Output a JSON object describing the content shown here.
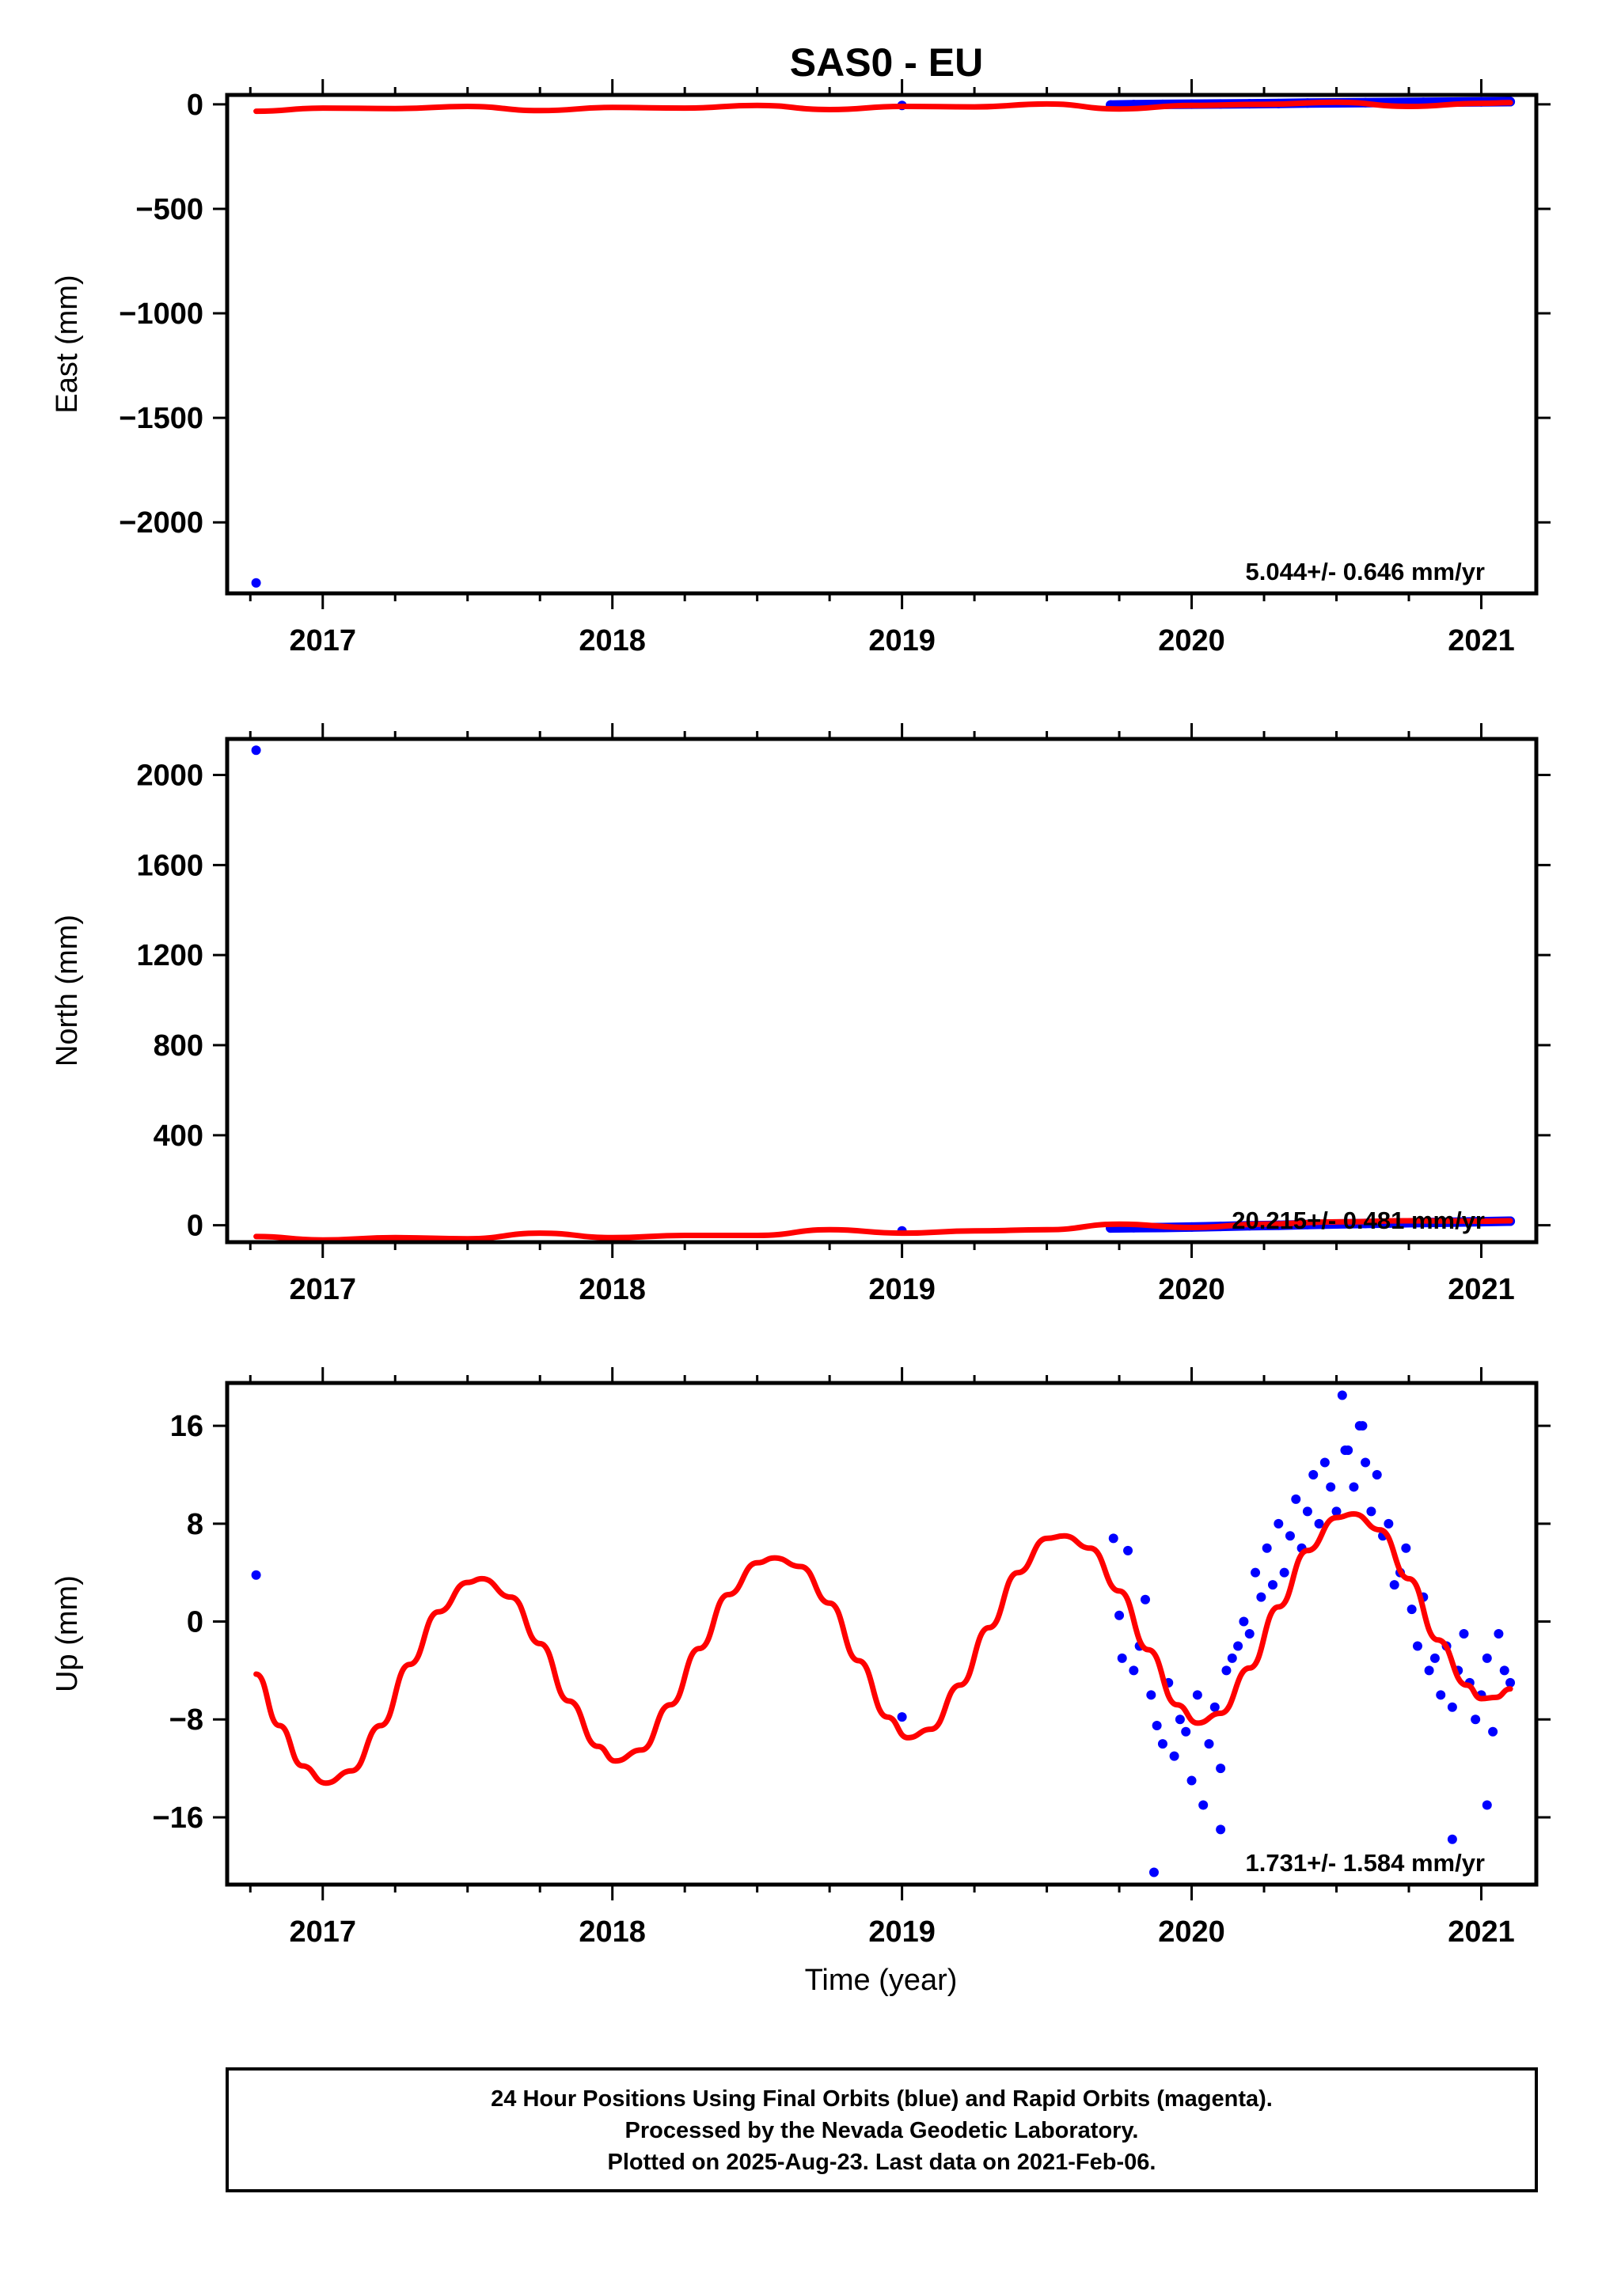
{
  "title": "SAS0 - EU",
  "colors": {
    "final_orbits": "#0000ff",
    "rapid_orbits": "#ff00ff",
    "model": "#ff0000",
    "frame": "#000000",
    "background": "#ffffff"
  },
  "footer": {
    "line1": "24 Hour Positions Using Final Orbits (blue) and Rapid Orbits (magenta).",
    "line2": "Processed by the Nevada Geodetic Laboratory.",
    "line3": "Plotted on 2025-Aug-23. Last data on 2021-Feb-06."
  },
  "chart_data": [
    {
      "type": "scatter",
      "ylabel": "East (mm)",
      "xlabel": "",
      "xlim": [
        2016.67,
        2021.19
      ],
      "ylim": [
        -2340,
        45
      ],
      "x_ticks": [
        2017,
        2018,
        2019,
        2020,
        2021
      ],
      "y_ticks": [
        0,
        -500,
        -1000,
        -1500,
        -2000
      ],
      "rate_label": "5.044+/- 0.646 mm/yr",
      "series": [
        {
          "role": "observations",
          "x": [
            2016.77,
            2019.0,
            2019.72,
            2019.8,
            2019.9,
            2020.0,
            2020.1,
            2020.2,
            2020.3,
            2020.4,
            2020.5,
            2020.6,
            2020.7,
            2020.8,
            2020.9,
            2021.0,
            2021.1
          ],
          "y": [
            -2290,
            -5,
            -3,
            -1,
            0,
            1,
            2,
            3,
            4,
            6,
            7,
            8,
            9,
            10,
            11,
            12,
            13
          ]
        },
        {
          "role": "model",
          "x": [
            2016.77,
            2017.0,
            2017.25,
            2017.5,
            2017.75,
            2018.0,
            2018.25,
            2018.5,
            2018.75,
            2019.0,
            2019.25,
            2019.5,
            2019.75,
            2020.0,
            2020.25,
            2020.5,
            2020.75,
            2021.0,
            2021.1
          ],
          "y": [
            -33,
            -18,
            -20,
            -10,
            -30,
            -15,
            -18,
            -5,
            -25,
            -10,
            -12,
            2,
            -22,
            -5,
            0,
            10,
            -10,
            5,
            8
          ]
        }
      ]
    },
    {
      "type": "scatter",
      "ylabel": "North (mm)",
      "xlabel": "",
      "xlim": [
        2016.67,
        2021.19
      ],
      "ylim": [
        -75,
        2160
      ],
      "x_ticks": [
        2017,
        2018,
        2019,
        2020,
        2021
      ],
      "y_ticks": [
        0,
        400,
        800,
        1200,
        1600,
        2000
      ],
      "rate_label": "20.215+/- 0.481 mm/yr",
      "series": [
        {
          "role": "observations",
          "x": [
            2016.77,
            2019.0,
            2019.72,
            2019.8,
            2019.9,
            2020.0,
            2020.1,
            2020.2,
            2020.3,
            2020.4,
            2020.5,
            2020.6,
            2020.7,
            2020.8,
            2020.9,
            2021.0,
            2021.1
          ],
          "y": [
            2110,
            -25,
            -12,
            -11,
            -10,
            -8,
            -5,
            -2,
            0,
            3,
            6,
            8,
            10,
            12,
            14,
            16,
            18
          ]
        },
        {
          "role": "model",
          "x": [
            2016.77,
            2017.0,
            2017.25,
            2017.5,
            2017.75,
            2018.0,
            2018.25,
            2018.5,
            2018.75,
            2019.0,
            2019.25,
            2019.5,
            2019.75,
            2020.0,
            2020.25,
            2020.5,
            2020.75,
            2021.0,
            2021.1
          ],
          "y": [
            -50,
            -65,
            -55,
            -60,
            -35,
            -55,
            -45,
            -45,
            -20,
            -35,
            -25,
            -20,
            5,
            -10,
            5,
            15,
            20,
            18,
            20
          ]
        }
      ]
    },
    {
      "type": "scatter",
      "ylabel": "Up (mm)",
      "xlabel": "Time (year)",
      "xlim": [
        2016.67,
        2021.19
      ],
      "ylim": [
        -21.5,
        19.5
      ],
      "x_ticks": [
        2017,
        2018,
        2019,
        2020,
        2021
      ],
      "y_ticks": [
        16,
        8,
        0,
        -8,
        -16
      ],
      "rate_label": "1.731+/- 1.584 mm/yr",
      "series": [
        {
          "role": "observations",
          "x": [
            2016.77,
            2019.0,
            2019.73,
            2019.75,
            2019.76,
            2019.78,
            2019.8,
            2019.82,
            2019.84,
            2019.86,
            2019.88,
            2019.9,
            2019.92,
            2019.94,
            2019.96,
            2019.98,
            2020.0,
            2020.02,
            2020.04,
            2020.06,
            2020.08,
            2020.1,
            2020.12,
            2020.14,
            2020.16,
            2020.18,
            2020.2,
            2020.22,
            2020.24,
            2020.26,
            2020.28,
            2020.3,
            2020.32,
            2020.34,
            2020.36,
            2020.38,
            2020.4,
            2020.42,
            2020.44,
            2020.46,
            2020.48,
            2020.5,
            2020.52,
            2020.54,
            2020.56,
            2020.58,
            2020.6,
            2020.62,
            2020.64,
            2020.66,
            2020.68,
            2020.7,
            2020.72,
            2020.74,
            2020.76,
            2020.78,
            2020.8,
            2020.82,
            2020.84,
            2020.86,
            2020.88,
            2020.9,
            2020.92,
            2020.94,
            2020.96,
            2020.98,
            2021.0,
            2021.02,
            2021.04,
            2021.06,
            2021.08,
            2021.1,
            2019.87,
            2020.1,
            2020.53,
            2020.59,
            2020.9,
            2021.02
          ],
          "y": [
            3.8,
            -7.8,
            6.8,
            0.5,
            -3,
            5.8,
            -4,
            -2,
            1.8,
            -6,
            -8.5,
            -10,
            -5,
            -11,
            -8,
            -9,
            -13,
            -6,
            -15,
            -10,
            -7,
            -12,
            -4,
            -3,
            -2,
            0,
            -1,
            4,
            2,
            6,
            3,
            8,
            4,
            7,
            10,
            6,
            9,
            12,
            8,
            13,
            11,
            9,
            18.5,
            14,
            11,
            16,
            13,
            9,
            12,
            7,
            8,
            3,
            4,
            6,
            1,
            -2,
            2,
            -4,
            -3,
            -6,
            -2,
            -7,
            -4,
            -1,
            -5,
            -8,
            -6,
            -3,
            -9,
            -1,
            -4,
            -5,
            -20.5,
            -17,
            14,
            16,
            -17.8,
            -15
          ]
        },
        {
          "role": "model",
          "x": [
            2016.77,
            2016.85,
            2016.93,
            2017.01,
            2017.1,
            2017.2,
            2017.3,
            2017.4,
            2017.5,
            2017.55,
            2017.65,
            2017.75,
            2017.85,
            2017.95,
            2018.01,
            2018.1,
            2018.2,
            2018.3,
            2018.4,
            2018.5,
            2018.56,
            2018.65,
            2018.75,
            2018.85,
            2018.95,
            2019.02,
            2019.1,
            2019.2,
            2019.3,
            2019.4,
            2019.5,
            2019.56,
            2019.65,
            2019.75,
            2019.85,
            2019.95,
            2020.02,
            2020.1,
            2020.2,
            2020.3,
            2020.4,
            2020.5,
            2020.56,
            2020.65,
            2020.75,
            2020.85,
            2020.95,
            2021.0,
            2021.05,
            2021.1
          ],
          "y": [
            -4.3,
            -8.5,
            -11.8,
            -13.2,
            -12.2,
            -8.5,
            -3.5,
            0.8,
            3.2,
            3.5,
            2,
            -1.8,
            -6.5,
            -10.2,
            -11.4,
            -10.5,
            -6.8,
            -2.2,
            2.2,
            4.8,
            5.2,
            4.5,
            1.5,
            -3.2,
            -7.8,
            -9.5,
            -8.8,
            -5.2,
            -0.5,
            4,
            6.8,
            7,
            6,
            2.5,
            -2.3,
            -6.8,
            -8.3,
            -7.5,
            -3.8,
            1.2,
            5.8,
            8.5,
            8.8,
            7.5,
            3.5,
            -1.5,
            -5.2,
            -6.3,
            -6.2,
            -5.5
          ]
        }
      ]
    }
  ]
}
